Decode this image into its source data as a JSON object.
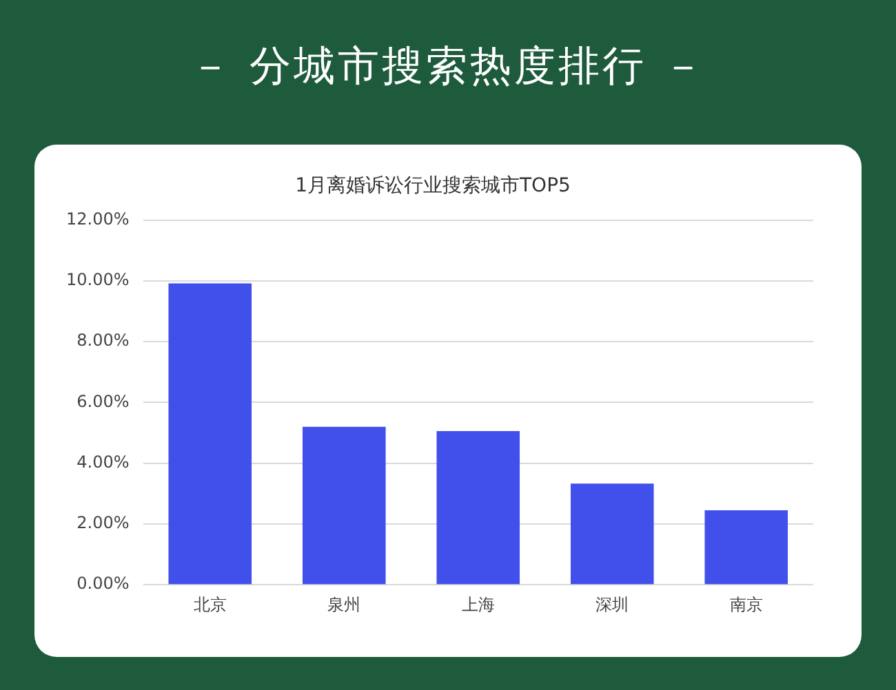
{
  "chart_data": {
    "type": "bar",
    "title": "－ 分城市搜索热度排行 －",
    "subtitle": "1月离婚诉讼行业搜索城市TOP5",
    "categories": [
      "北京",
      "泉州",
      "上海",
      "深圳",
      "南京"
    ],
    "values": [
      9.92,
      5.2,
      5.06,
      3.33,
      2.45
    ],
    "color": "#4250eb",
    "ylim": [
      0,
      12
    ],
    "yticks": [
      {
        "value": 0,
        "label": "0.00%"
      },
      {
        "value": 2,
        "label": "2.00%"
      },
      {
        "value": 4,
        "label": "4.00%"
      },
      {
        "value": 6,
        "label": "6.00%"
      },
      {
        "value": 8,
        "label": "8.00%"
      },
      {
        "value": 10,
        "label": "10.00%"
      },
      {
        "value": 12,
        "label": "12.00%"
      }
    ],
    "grid": "y",
    "legend": false
  }
}
